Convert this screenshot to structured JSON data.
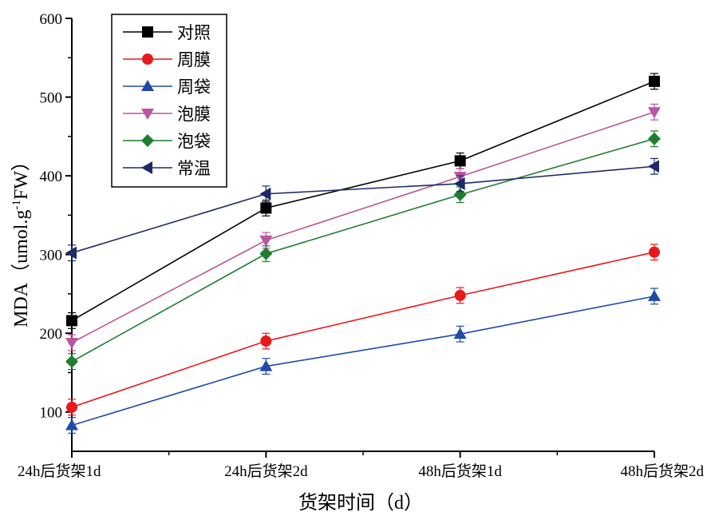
{
  "chart_data": {
    "type": "line",
    "title": "",
    "xlabel": "货架时间（d）",
    "ylabel_main": "MDA（umol.g",
    "ylabel_sup": "-1",
    "ylabel_end": "FW）",
    "categories": [
      "24h后货架1d",
      "24h后货架2d",
      "48h后货架1d",
      "48h后货架2d"
    ],
    "ylim": [
      50,
      600
    ],
    "yticks": [
      100,
      200,
      300,
      400,
      500,
      600
    ],
    "grid": false,
    "legend_position": "top-left",
    "series": [
      {
        "name": "对照",
        "color": "#000000",
        "marker": "square",
        "values": [
          216,
          359,
          419,
          520
        ],
        "errors": [
          10,
          10,
          10,
          10
        ]
      },
      {
        "name": "周膜",
        "color": "#e8191b",
        "marker": "circle",
        "values": [
          106,
          190,
          248,
          303
        ],
        "errors": [
          10,
          10,
          10,
          10
        ]
      },
      {
        "name": "周袋",
        "color": "#1f4aa8",
        "marker": "triangle-up",
        "values": [
          83,
          158,
          199,
          247
        ],
        "errors": [
          10,
          10,
          10,
          10
        ]
      },
      {
        "name": "泡膜",
        "color": "#b9569e",
        "marker": "triangle-down",
        "values": [
          188,
          318,
          399,
          481
        ],
        "errors": [
          10,
          10,
          10,
          10
        ]
      },
      {
        "name": "泡袋",
        "color": "#1e7d30",
        "marker": "diamond",
        "values": [
          164,
          301,
          376,
          447
        ],
        "errors": [
          10,
          10,
          10,
          10
        ]
      },
      {
        "name": "常温",
        "color": "#1d2a66",
        "marker": "triangle-left",
        "values": [
          302,
          377,
          390,
          412
        ],
        "errors": [
          10,
          10,
          10,
          10
        ]
      }
    ]
  }
}
